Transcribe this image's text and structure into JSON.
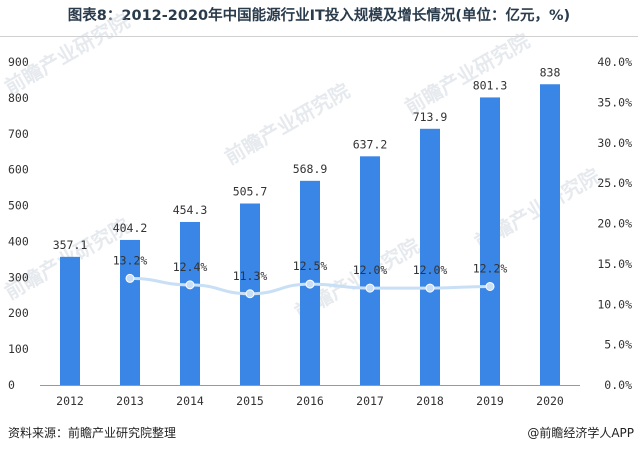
{
  "title": "图表8：2012-2020年中国能源行业IT投入规模及增长情况(单位：亿元，%)",
  "source": "资料来源：前瞻产业研究院整理",
  "brand": "@前瞻经济学人APP",
  "colors": {
    "bar": "#3a86e6",
    "line": "#c8dff5",
    "marker": "#c8dff5",
    "axis": "#999999"
  },
  "chart_data": {
    "type": "bar",
    "categories": [
      "2012",
      "2013",
      "2014",
      "2015",
      "2016",
      "2017",
      "2018",
      "2019",
      "2020"
    ],
    "series": [
      {
        "type": "bar",
        "axis": "left",
        "values": [
          357.1,
          404.2,
          454.3,
          505.7,
          568.9,
          637.2,
          713.9,
          801.3,
          838
        ],
        "labels": [
          "357.1",
          "404.2",
          "454.3",
          "505.7",
          "568.9",
          "637.2",
          "713.9",
          "801.3",
          "838"
        ]
      },
      {
        "type": "line",
        "axis": "right",
        "values": [
          null,
          13.2,
          12.4,
          11.3,
          12.5,
          12.0,
          12.0,
          12.2,
          null
        ],
        "labels": [
          "",
          "13.2%",
          "12.4%",
          "11.3%",
          "12.5%",
          "12.0%",
          "12.0%",
          "12.2%",
          ""
        ]
      }
    ],
    "y_left": {
      "min": 0,
      "max": 900,
      "ticks": [
        "0",
        "100",
        "200",
        "300",
        "400",
        "500",
        "600",
        "700",
        "800",
        "900"
      ]
    },
    "y_right": {
      "min": 0,
      "max": 40,
      "ticks": [
        "0.0%",
        "5.0%",
        "10.0%",
        "15.0%",
        "20.0%",
        "25.0%",
        "30.0%",
        "35.0%",
        "40.0%"
      ]
    },
    "grid": false
  }
}
